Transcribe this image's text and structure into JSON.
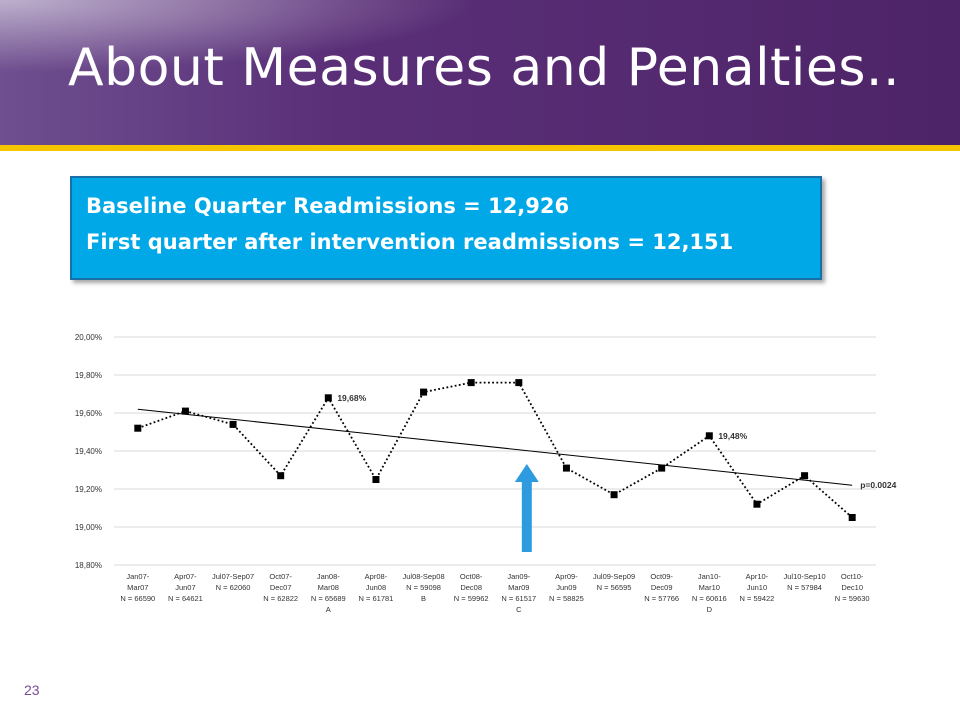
{
  "slide": {
    "title": "About Measures and Penalties..",
    "callout_line1": "Baseline Quarter Readmissions = 12,926",
    "callout_line2": "First quarter after intervention readmissions = 12,151",
    "page_number": "23",
    "colors": {
      "header": "#4e2468",
      "accent_rule": "#f5c500",
      "callout_bg": "#00a8e8",
      "arrow": "#2e9be0"
    }
  },
  "chart_data": {
    "type": "line",
    "title": "",
    "xlabel": "",
    "ylabel": "",
    "ylim": [
      18.8,
      20.0
    ],
    "y_ticks": [
      "20,00%",
      "19,80%",
      "19,60%",
      "19,40%",
      "19,20%",
      "19,00%",
      "18,80%"
    ],
    "grid": true,
    "categories": [
      [
        "Jan07-",
        "Mar07",
        "N = 66590"
      ],
      [
        "Apr07-",
        "Jun07",
        "N = 64621"
      ],
      [
        "Jul07-Sep07",
        "N = 62060"
      ],
      [
        "Oct07-",
        "Dec07",
        "N = 62822"
      ],
      [
        "Jan08-",
        "Mar08",
        "N = 65689",
        "A"
      ],
      [
        "Apr08-",
        "Jun08",
        "N = 61781"
      ],
      [
        "Jul08-Sep08",
        "N = 59098",
        "B"
      ],
      [
        "Oct08-",
        "Dec08",
        "N = 59962"
      ],
      [
        "Jan09-",
        "Mar09",
        "N = 61517",
        "C"
      ],
      [
        "Apr09-",
        "Jun09",
        "N = 58825"
      ],
      [
        "Jul09-Sep09",
        "N = 56595"
      ],
      [
        "Oct09-",
        "Dec09",
        "N = 57766"
      ],
      [
        "Jan10-",
        "Mar10",
        "N = 60616",
        "D"
      ],
      [
        "Apr10-",
        "Jun10",
        "N = 59422"
      ],
      [
        "Jul10-Sep10",
        "N = 57984"
      ],
      [
        "Oct10-",
        "Dec10",
        "N = 59630"
      ]
    ],
    "series": [
      {
        "values": [
          19.52,
          19.61,
          19.54,
          19.27,
          19.68,
          19.25,
          19.71,
          19.76,
          19.76,
          19.31,
          19.17,
          19.31,
          19.48,
          19.12,
          19.27,
          19.05
        ]
      }
    ],
    "trend": {
      "start": 19.62,
      "end": 19.22
    },
    "data_labels": [
      {
        "index": 4,
        "text": "19,68%"
      },
      {
        "index": 12,
        "text": "19,48%"
      }
    ],
    "trend_label": "p=0.0024",
    "intervention_marker_index": 8
  }
}
